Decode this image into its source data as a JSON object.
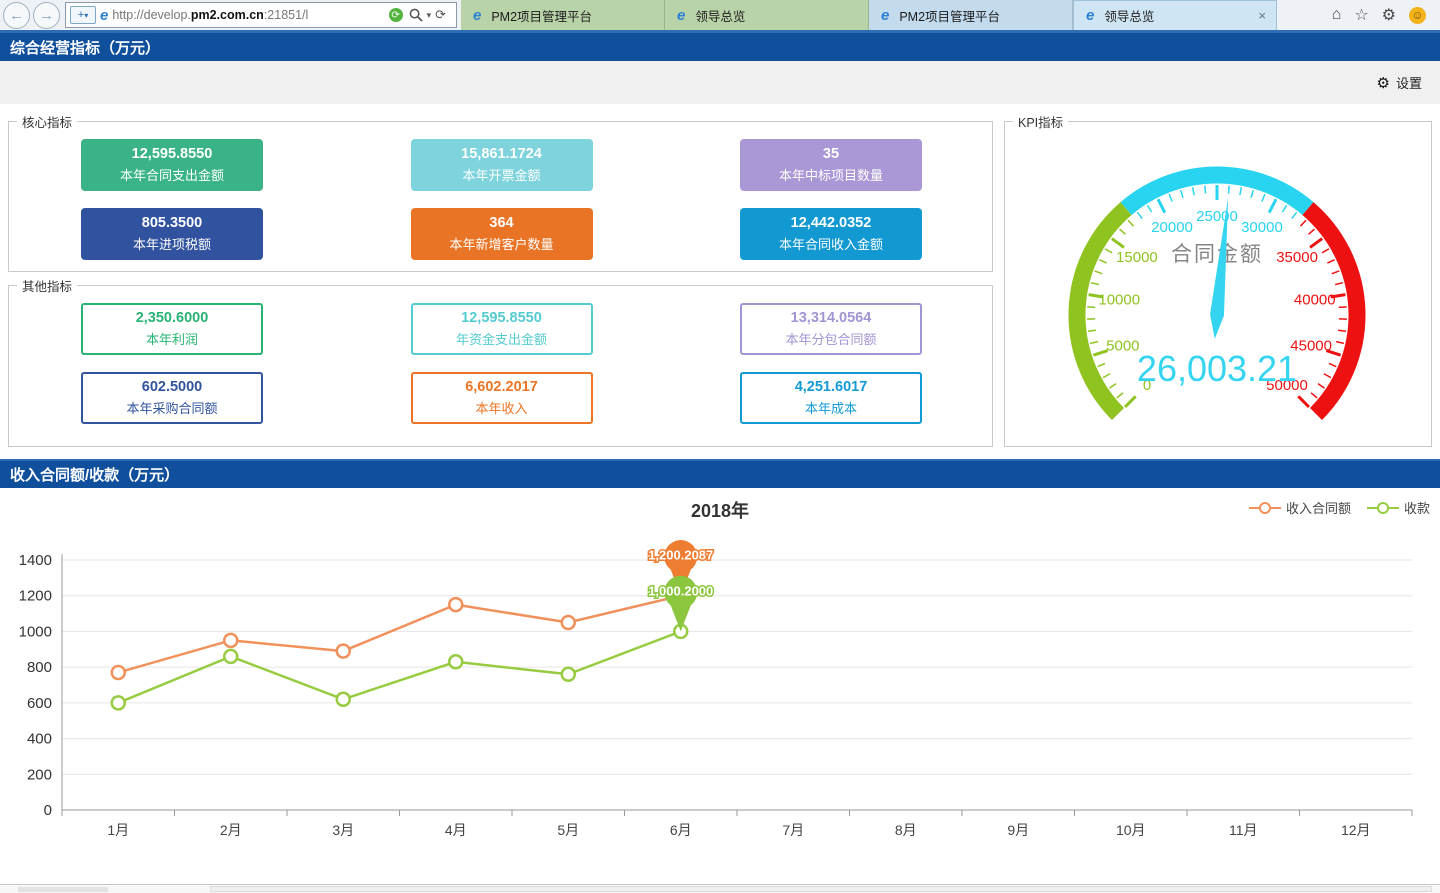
{
  "browser": {
    "url_prefix": "http://develop.",
    "url_domain": "pm2.com.cn",
    "url_suffix": ":21851/l",
    "tabs": [
      {
        "label": "PM2项目管理平台",
        "group": "green",
        "active": false
      },
      {
        "label": "领导总览",
        "group": "green",
        "active": false
      },
      {
        "label": "PM2项目管理平台",
        "group": "blue",
        "active": false
      },
      {
        "label": "领导总览",
        "group": "blue",
        "active": true
      }
    ],
    "close_glyph": "×",
    "icons": {
      "back": "←",
      "forward": "→",
      "compat": "+",
      "dropdown": "▾",
      "refresh": "⟳",
      "home": "⌂",
      "favorites": "☆",
      "tools": "⚙",
      "smiley": "☺"
    }
  },
  "header": {
    "title": "综合经营指标（万元）",
    "settings_icon": "⚙",
    "settings_label": "设置"
  },
  "core_indicators": {
    "legend": "核心指标",
    "cards": [
      {
        "value": "12,595.8550",
        "label": "本年合同支出金额",
        "color": "#3ab487"
      },
      {
        "value": "15,861.1724",
        "label": "本年开票金额",
        "color": "#7ed3dd"
      },
      {
        "value": "35",
        "label": "本年中标项目数量",
        "color": "#a998d5"
      },
      {
        "value": "805.3500",
        "label": "本年进项税额",
        "color": "#31539f"
      },
      {
        "value": "364",
        "label": "本年新增客户数量",
        "color": "#ea7425"
      },
      {
        "value": "12,442.0352",
        "label": "本年合同收入金额",
        "color": "#1399d2"
      }
    ]
  },
  "other_indicators": {
    "legend": "其他指标",
    "cards": [
      {
        "value": "2,350.6000",
        "label": "本年利润",
        "color": "#29b474"
      },
      {
        "value": "12,595.8550",
        "label": "年资金支出金额",
        "color": "#54cbd1"
      },
      {
        "value": "13,314.0564",
        "label": "本年分包合同额",
        "color": "#a394d4"
      },
      {
        "value": "602.5000",
        "label": "本年采购合同额",
        "color": "#32549e"
      },
      {
        "value": "6,602.2017",
        "label": "本年收入",
        "color": "#eb7524"
      },
      {
        "value": "4,251.6017",
        "label": "本年成本",
        "color": "#129ad3"
      }
    ]
  },
  "kpi": {
    "legend": "KPI指标",
    "gauge": {
      "title": "合同金额",
      "value": 26003.21,
      "value_text": "26,003.21",
      "min": 0,
      "max": 50000,
      "major_step": 5000,
      "minor_step": 1000,
      "segments": [
        {
          "to": 17500,
          "color": "#8fc31f"
        },
        {
          "to": 32500,
          "color": "#28d4f0"
        },
        {
          "to": 50000,
          "color": "#ee1111"
        }
      ],
      "value_color": "#35d5f2",
      "title_color": "#858585"
    }
  },
  "income_section": {
    "title": "收入合同额/收款（万元）"
  },
  "chart_data": {
    "type": "line",
    "title": "2018年",
    "categories": [
      "1月",
      "2月",
      "3月",
      "4月",
      "5月",
      "6月",
      "7月",
      "8月",
      "9月",
      "10月",
      "11月",
      "12月"
    ],
    "series": [
      {
        "name": "收入合同额",
        "color": "#f0905a",
        "pin_color": "#ed7d31",
        "values": [
          770,
          950,
          890,
          1150,
          1050,
          1200.2087,
          null,
          null,
          null,
          null,
          null,
          null
        ],
        "marker": {
          "index": 5,
          "label": "1,200.2087"
        }
      },
      {
        "name": "收款",
        "color": "#97cb41",
        "pin_color": "#8cc63e",
        "values": [
          600,
          860,
          620,
          830,
          760,
          1000.2,
          null,
          null,
          null,
          null,
          null,
          null
        ],
        "marker": {
          "index": 5,
          "label": "1,000.2000"
        }
      }
    ],
    "ylim": [
      0,
      1400
    ],
    "ytick_step": 200,
    "grid": true,
    "legend_position": "top-right"
  }
}
